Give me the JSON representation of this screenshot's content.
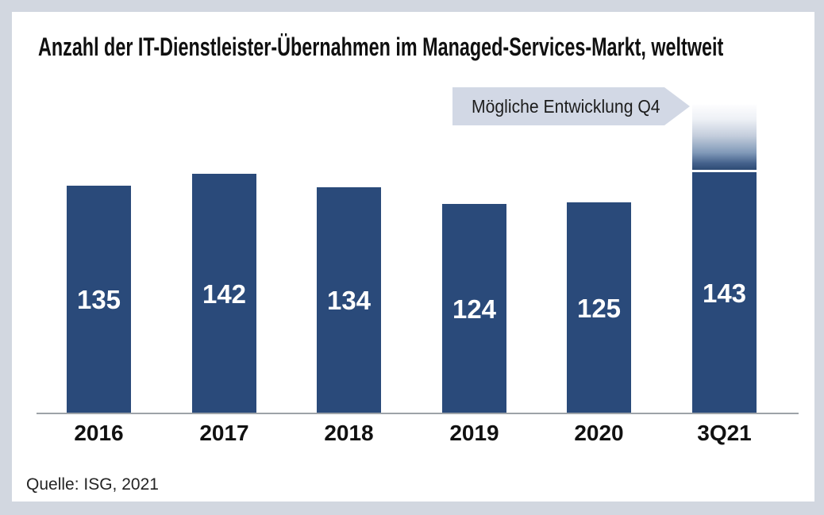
{
  "title": "Anzahl der IT-Dienstleister-Übernahmen im Managed-Services-Markt, weltweit",
  "source": "Quelle: ISG, 2021",
  "annotation": {
    "label": "Mögliche Entwicklung Q4"
  },
  "colors": {
    "bar": "#2a4a7a",
    "page_bg": "#d2d7e0",
    "card_bg": "#ffffff",
    "banner_bg": "#d2d8e5",
    "axis_line": "#9da3a8",
    "value_label_text": "#ffffff",
    "projection_gradient_dark": "#2d4b74"
  },
  "chart_data": {
    "type": "bar",
    "title": "Anzahl der IT-Dienstleister-Übernahmen im Managed-Services-Markt, weltweit",
    "categories": [
      "2016",
      "2017",
      "2018",
      "2019",
      "2020",
      "3Q21"
    ],
    "values": [
      135,
      142,
      134,
      124,
      125,
      143
    ],
    "xlabel": "",
    "ylabel": "",
    "ylim": [
      0,
      190
    ],
    "grid": false,
    "legend": "none",
    "data_labels": "inside center, white bold",
    "annotation": "Mögliche Entwicklung Q4",
    "projection": {
      "category": "3Q21",
      "label": "Mögliche Entwicklung Q4",
      "style": "white-to-navy gradient segment above bar, separated by thin white line",
      "estimated_total": 183
    },
    "source": "Quelle: ISG, 2021"
  }
}
